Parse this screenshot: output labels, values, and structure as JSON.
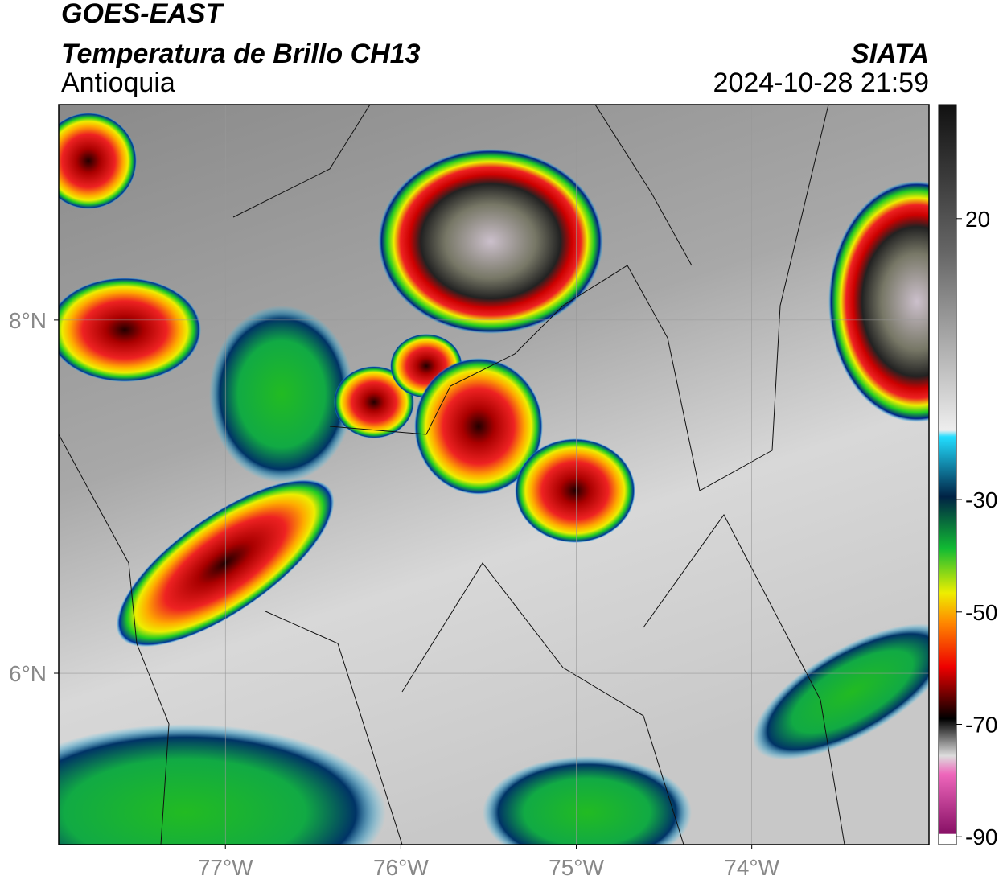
{
  "header": {
    "title": "GOES-EAST",
    "subtitle": "Temperatura de Brillo CH13",
    "region": "Antioquia",
    "source": "SIATA",
    "timestamp": "2024-10-28 21:59"
  },
  "map": {
    "xlim": [
      -77.95,
      -72.99
    ],
    "ylim": [
      5.03,
      9.22
    ],
    "xticks": [
      {
        "value": -77,
        "label": "77°W"
      },
      {
        "value": -76,
        "label": "76°W"
      },
      {
        "value": -75,
        "label": "75°W"
      },
      {
        "value": -74,
        "label": "74°W"
      }
    ],
    "yticks": [
      {
        "value": 8,
        "label": "8°N"
      },
      {
        "value": 6,
        "label": "6°N"
      }
    ],
    "grid": true
  },
  "colorbar": {
    "lim": [
      -91.4,
      40.3
    ],
    "ticks": [
      20,
      -30,
      -50,
      -70,
      -90
    ]
  }
}
